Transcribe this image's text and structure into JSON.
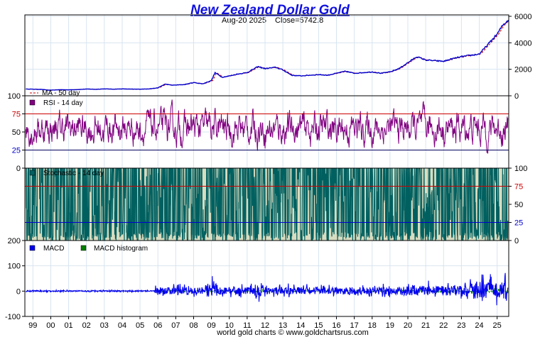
{
  "chart_data": {
    "type": "line",
    "title": "New Zealand Dollar Gold",
    "subtitle": {
      "date": "Aug-20  2025",
      "close": "Close=5742.8"
    },
    "footer": "world gold charts © www.goldchartsrus.com",
    "x_ticks": [
      "99",
      "00",
      "01",
      "02",
      "03",
      "04",
      "05",
      "06",
      "07",
      "08",
      "09",
      "10",
      "11",
      "12",
      "13",
      "14",
      "15",
      "16",
      "17",
      "18",
      "19",
      "20",
      "21",
      "22",
      "23",
      "24",
      "25"
    ],
    "x_range": [
      1998.55,
      2025.65
    ],
    "colors": {
      "price": "#0000cc",
      "ma": "#cc0000",
      "rsi": "#800080",
      "stoch": "#006060",
      "macd": "#0000ee",
      "hist": "#008000",
      "grid": "#d8e4f0",
      "red_line": "#cc0000",
      "blue_line": "#0000cc"
    },
    "panels": {
      "price": {
        "y_ticks": [
          "6000",
          "4000",
          "2000",
          "0"
        ],
        "ylim": [
          0,
          6000
        ],
        "legend": "MA - 50 day",
        "series_points": [
          [
            1998.6,
            510
          ],
          [
            1999.5,
            480
          ],
          [
            1999.9,
            420
          ],
          [
            2000.5,
            460
          ],
          [
            2001.0,
            450
          ],
          [
            2001.5,
            470
          ],
          [
            2002.0,
            510
          ],
          [
            2002.5,
            490
          ],
          [
            2003.0,
            520
          ],
          [
            2003.5,
            500
          ],
          [
            2004.0,
            520
          ],
          [
            2004.5,
            500
          ],
          [
            2005.0,
            500
          ],
          [
            2005.5,
            520
          ],
          [
            2006.0,
            600
          ],
          [
            2006.4,
            880
          ],
          [
            2006.8,
            800
          ],
          [
            2007.5,
            850
          ],
          [
            2008.0,
            1000
          ],
          [
            2008.5,
            900
          ],
          [
            2009.0,
            1150
          ],
          [
            2009.2,
            1750
          ],
          [
            2009.6,
            1400
          ],
          [
            2010.0,
            1500
          ],
          [
            2010.5,
            1650
          ],
          [
            2011.0,
            1750
          ],
          [
            2011.6,
            2200
          ],
          [
            2012.0,
            2050
          ],
          [
            2012.6,
            2150
          ],
          [
            2013.0,
            1950
          ],
          [
            2013.5,
            1550
          ],
          [
            2014.0,
            1500
          ],
          [
            2014.5,
            1550
          ],
          [
            2015.0,
            1600
          ],
          [
            2015.5,
            1550
          ],
          [
            2016.0,
            1700
          ],
          [
            2016.5,
            1850
          ],
          [
            2017.0,
            1700
          ],
          [
            2017.5,
            1750
          ],
          [
            2018.0,
            1800
          ],
          [
            2018.5,
            1700
          ],
          [
            2019.0,
            1800
          ],
          [
            2019.5,
            2050
          ],
          [
            2020.0,
            2500
          ],
          [
            2020.5,
            2950
          ],
          [
            2021.0,
            2700
          ],
          [
            2021.5,
            2650
          ],
          [
            2022.0,
            2600
          ],
          [
            2022.5,
            2800
          ],
          [
            2023.0,
            2950
          ],
          [
            2023.5,
            3050
          ],
          [
            2024.0,
            3150
          ],
          [
            2024.5,
            3900
          ],
          [
            2025.0,
            4650
          ],
          [
            2025.3,
            5300
          ],
          [
            2025.63,
            5742.8
          ]
        ]
      },
      "rsi": {
        "legend": "RSI - 14 day",
        "left_ticks": [
          "100",
          "75",
          "50",
          "25",
          "0"
        ],
        "ylim": [
          0,
          100
        ],
        "ref_lines": [
          75,
          25
        ]
      },
      "stochastic": {
        "legend": "Stochastic - 14 day",
        "right_ticks": [
          "100",
          "75",
          "50",
          "25",
          "0"
        ],
        "ylim": [
          0,
          100
        ],
        "ref_lines": [
          75,
          25
        ]
      },
      "macd": {
        "legend_macd": "MACD",
        "legend_hist": "MACD histogram",
        "left_ticks": [
          "200",
          "100",
          "0",
          "-100"
        ],
        "ylim": [
          -100,
          200
        ]
      }
    }
  }
}
